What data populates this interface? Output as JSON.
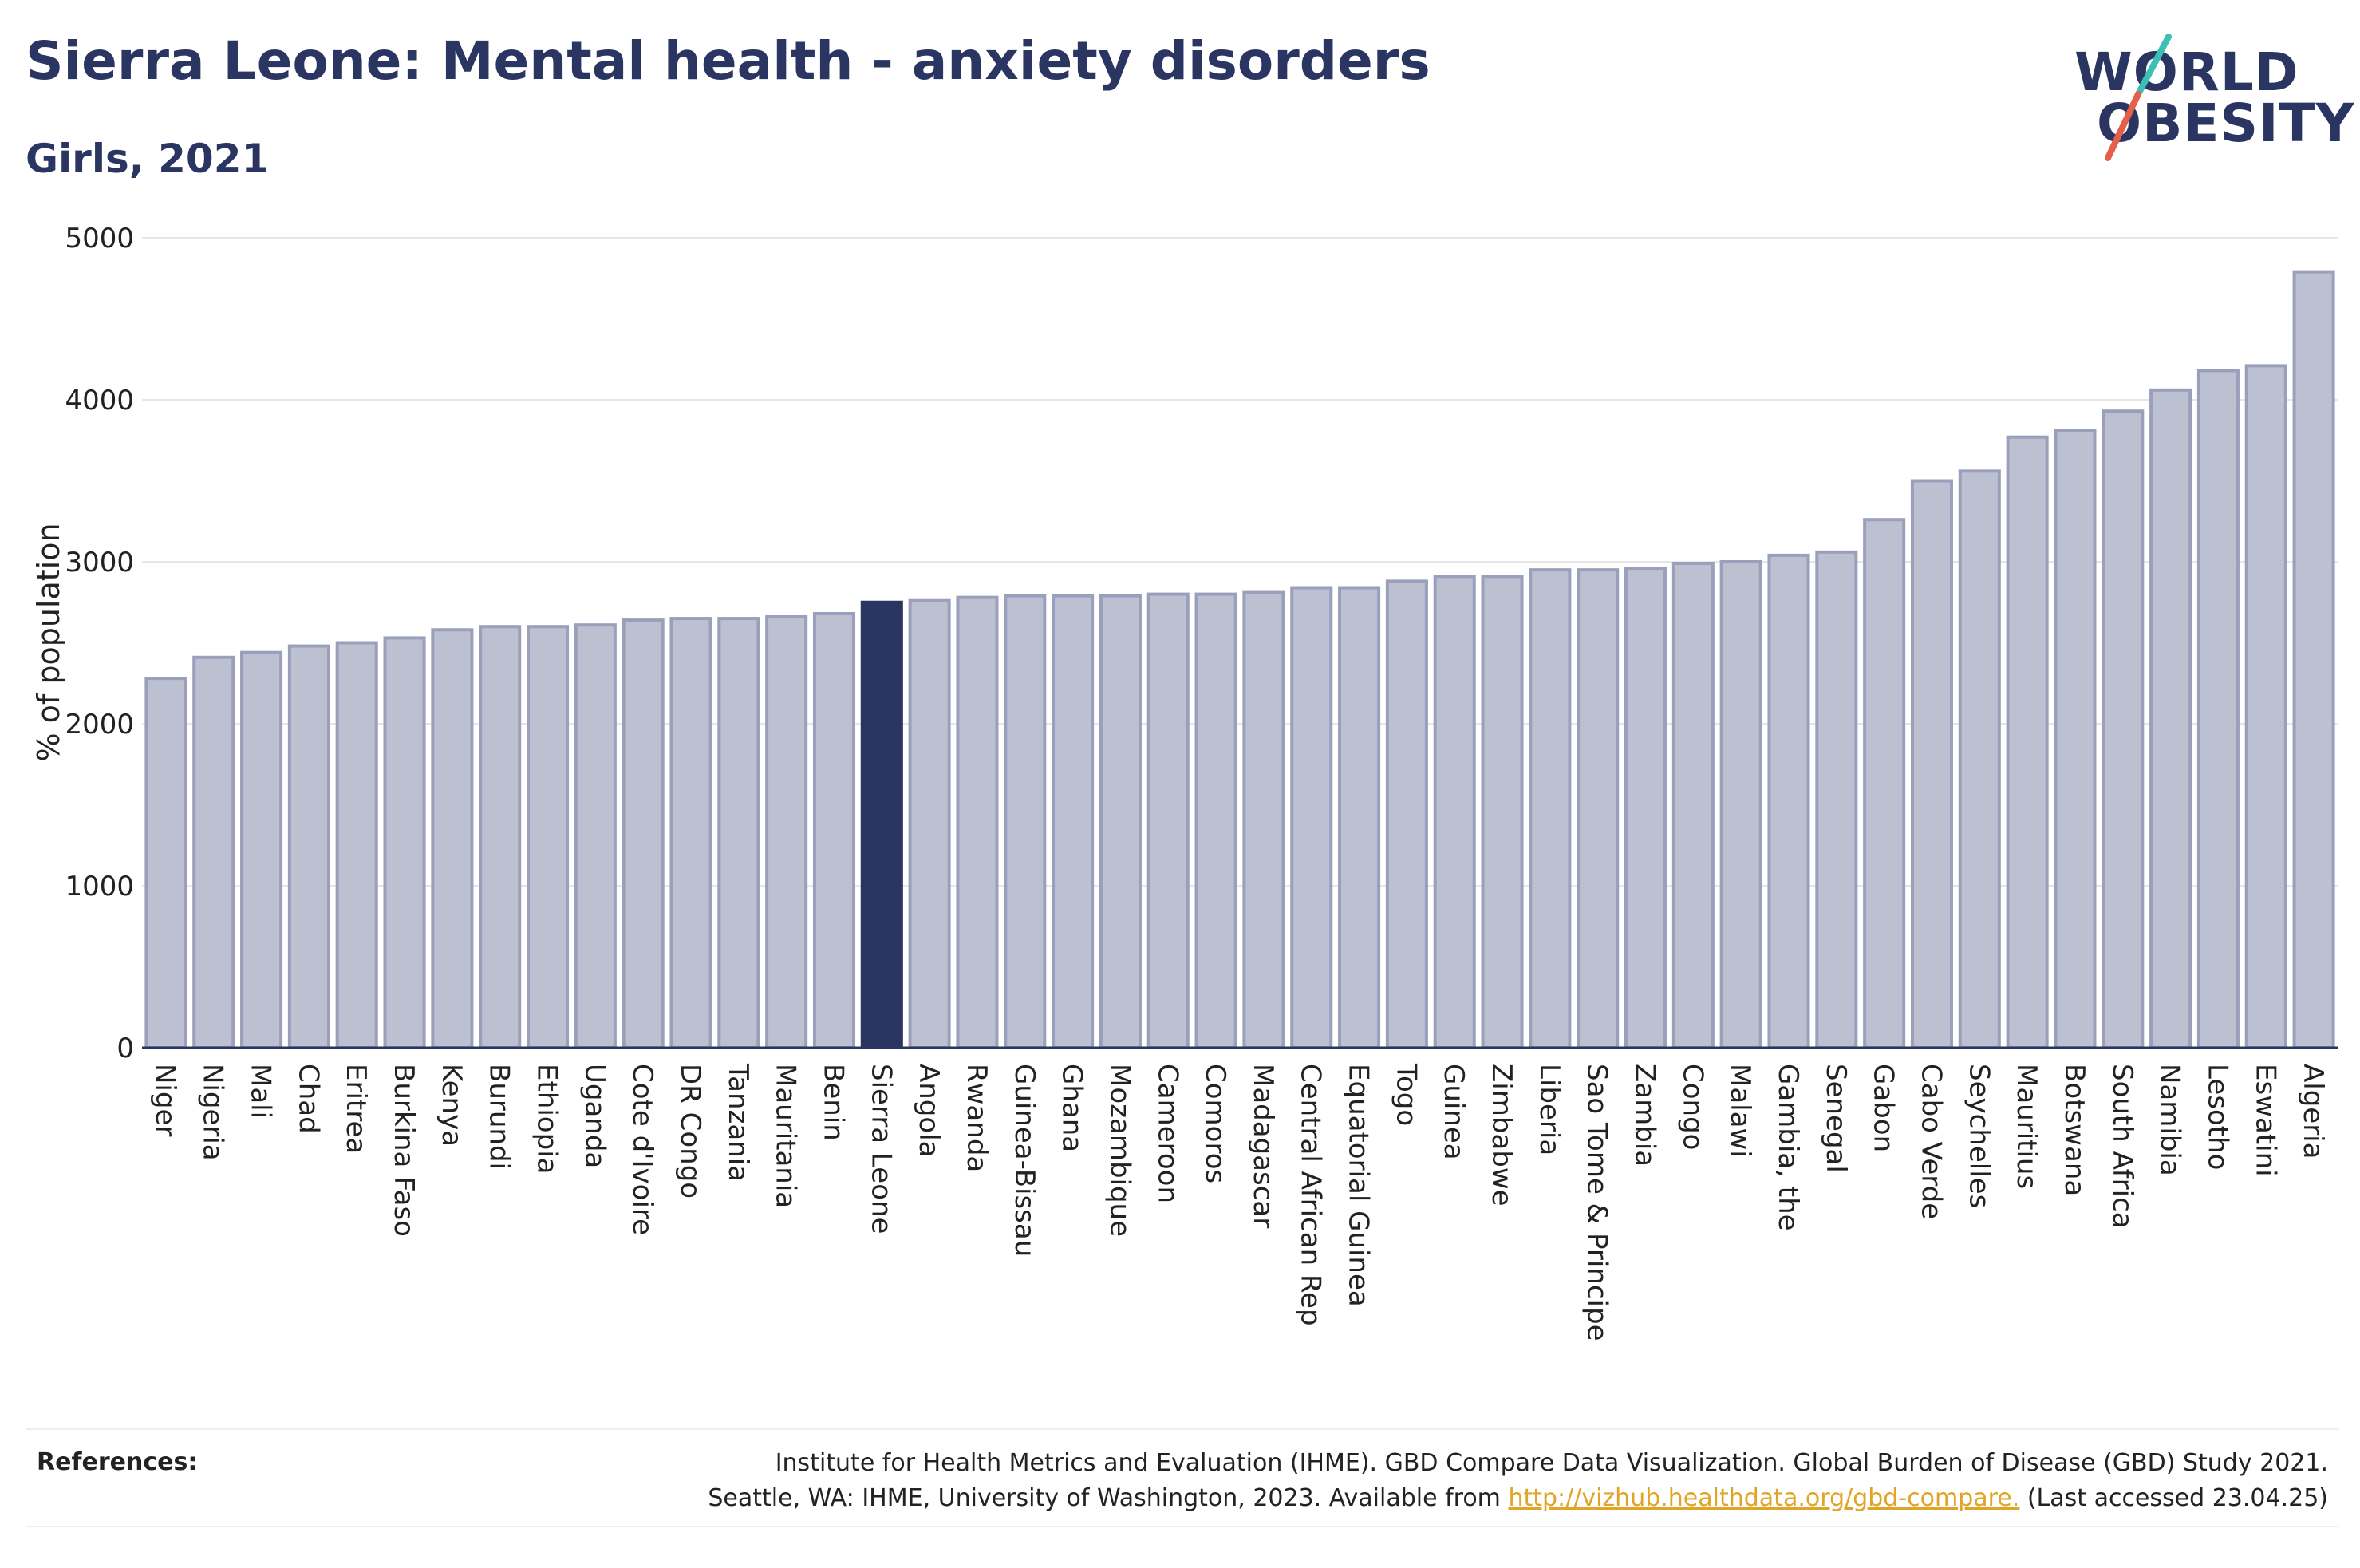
{
  "title": "Sierra Leone: Mental health - anxiety disorders",
  "subtitle": "Girls, 2021",
  "logo": {
    "line1": "WORLD",
    "line2": "OBESITY"
  },
  "colors": {
    "highlight": "#2b3561",
    "bar_fill": "#bcc0d0",
    "bar_stroke": "#9aa0bb",
    "grid": "#e6e6e6",
    "link": "#e0a526"
  },
  "chart_data": {
    "type": "bar",
    "ylabel": "% of population",
    "ylim": [
      0,
      5000
    ],
    "yticks": [
      0,
      1000,
      2000,
      3000,
      4000,
      5000
    ],
    "grid": true,
    "highlight": "Sierra Leone",
    "categories": [
      "Niger",
      "Nigeria",
      "Mali",
      "Chad",
      "Eritrea",
      "Burkina Faso",
      "Kenya",
      "Burundi",
      "Ethiopia",
      "Uganda",
      "Cote d'Ivoire",
      "DR Congo",
      "Tanzania",
      "Mauritania",
      "Benin",
      "Sierra Leone",
      "Angola",
      "Rwanda",
      "Guinea-Bissau",
      "Ghana",
      "Mozambique",
      "Cameroon",
      "Comoros",
      "Madagascar",
      "Central African Rep",
      "Equatorial Guinea",
      "Togo",
      "Guinea",
      "Zimbabwe",
      "Liberia",
      "Sao Tome & Principe",
      "Zambia",
      "Congo",
      "Malawi",
      "Gambia, the",
      "Senegal",
      "Gabon",
      "Cabo Verde",
      "Seychelles",
      "Mauritius",
      "Botswana",
      "South Africa",
      "Namibia",
      "Lesotho",
      "Eswatini",
      "Algeria"
    ],
    "values": [
      2280,
      2410,
      2440,
      2480,
      2500,
      2530,
      2580,
      2600,
      2600,
      2610,
      2640,
      2650,
      2650,
      2660,
      2680,
      2750,
      2760,
      2780,
      2790,
      2790,
      2790,
      2800,
      2800,
      2810,
      2840,
      2840,
      2880,
      2910,
      2910,
      2950,
      2950,
      2960,
      2990,
      3000,
      3040,
      3060,
      3260,
      3500,
      3560,
      3770,
      3810,
      3930,
      4060,
      4180,
      4210,
      4790
    ]
  },
  "references": {
    "label": "References:",
    "line1": "Institute for Health Metrics and Evaluation (IHME). GBD Compare Data Visualization. Global Burden of Disease (GBD) Study 2021.",
    "line2_prefix": "Seattle, WA: IHME, University of Washington, 2023. Available from ",
    "link": "http://vizhub.healthdata.org/gbd-compare.",
    "line2_suffix": " (Last accessed 23.04.25)"
  }
}
